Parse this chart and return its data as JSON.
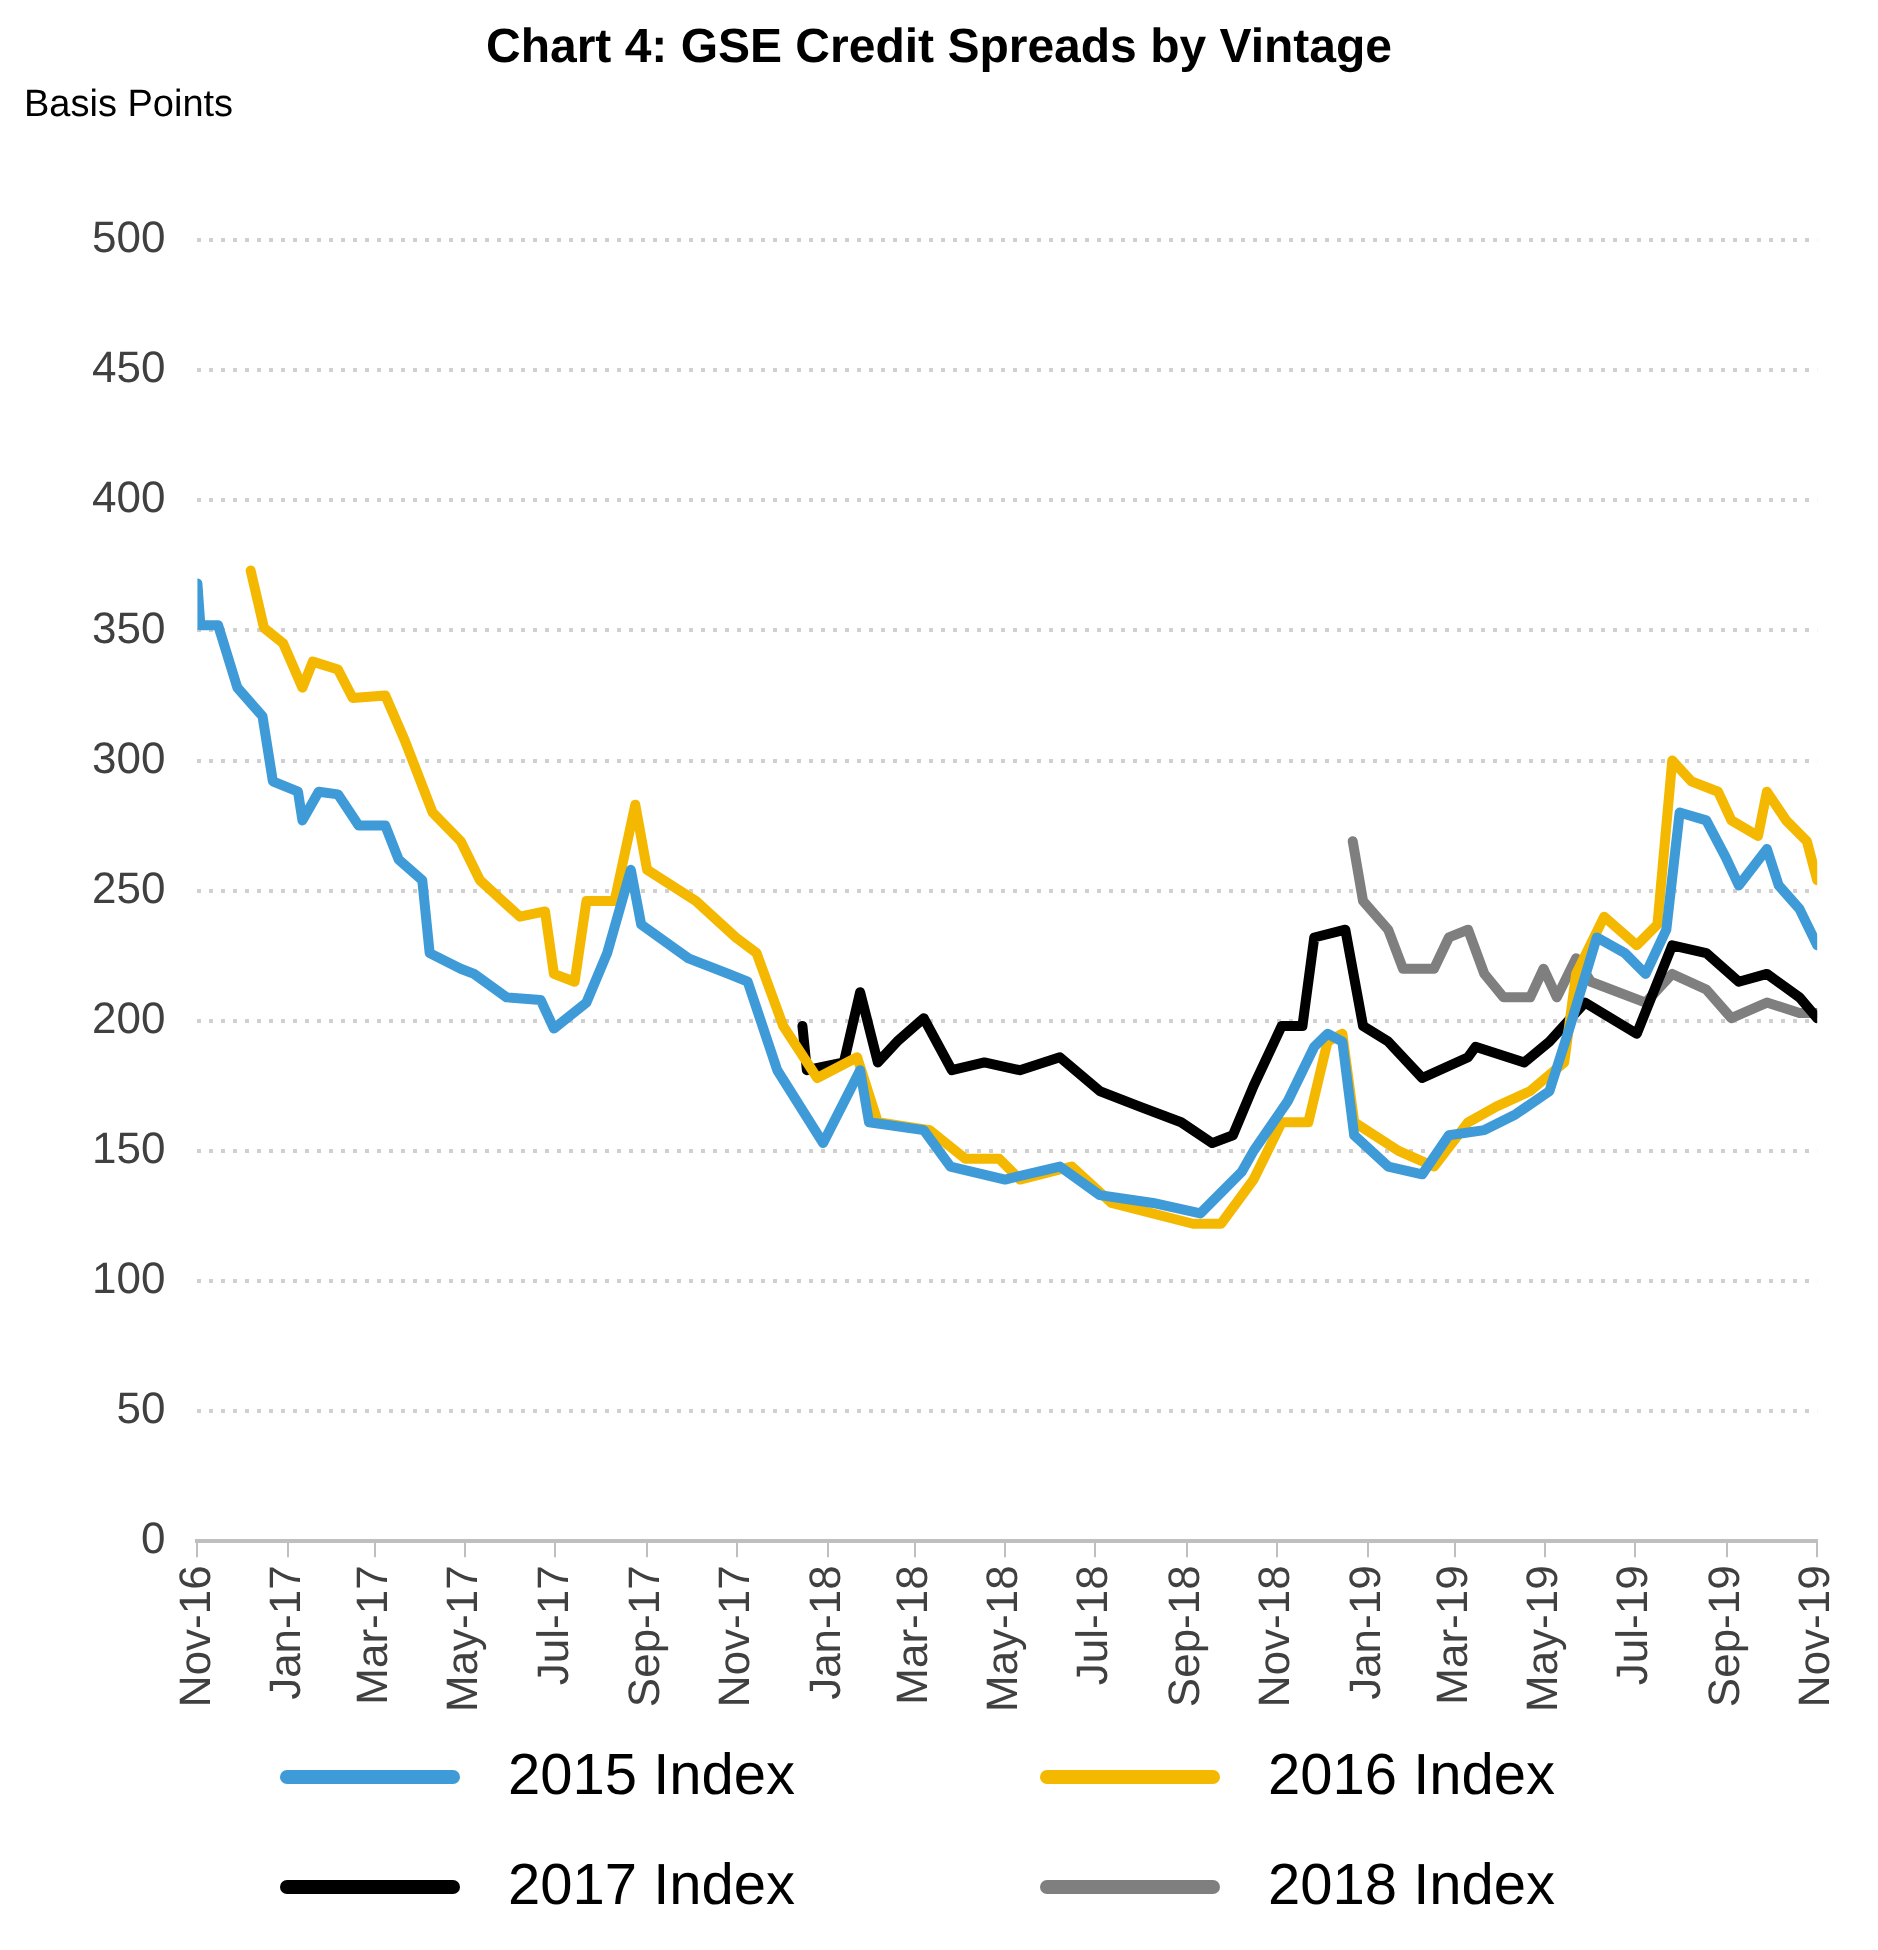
{
  "chart_data": {
    "type": "line",
    "title": "Chart 4: GSE Credit Spreads by Vintage",
    "ylabel": "Basis Points",
    "xlim": [
      "2016-11-01",
      "2019-11-01"
    ],
    "xticks": [
      {
        "value": "2016-11-01",
        "label": "Nov-16"
      },
      {
        "value": "2017-01-01",
        "label": "Jan-17"
      },
      {
        "value": "2017-03-01",
        "label": "Mar-17"
      },
      {
        "value": "2017-05-01",
        "label": "May-17"
      },
      {
        "value": "2017-07-01",
        "label": "Jul-17"
      },
      {
        "value": "2017-09-01",
        "label": "Sep-17"
      },
      {
        "value": "2017-11-01",
        "label": "Nov-17"
      },
      {
        "value": "2018-01-01",
        "label": "Jan-18"
      },
      {
        "value": "2018-03-01",
        "label": "Mar-18"
      },
      {
        "value": "2018-05-01",
        "label": "May-18"
      },
      {
        "value": "2018-07-01",
        "label": "Jul-18"
      },
      {
        "value": "2018-09-01",
        "label": "Sep-18"
      },
      {
        "value": "2018-11-01",
        "label": "Nov-18"
      },
      {
        "value": "2019-01-01",
        "label": "Jan-19"
      },
      {
        "value": "2019-03-01",
        "label": "Mar-19"
      },
      {
        "value": "2019-05-01",
        "label": "May-19"
      },
      {
        "value": "2019-07-01",
        "label": "Jul-19"
      },
      {
        "value": "2019-09-01",
        "label": "Sep-19"
      },
      {
        "value": "2019-11-01",
        "label": "Nov-19"
      }
    ],
    "ylim": [
      0,
      500
    ],
    "yticks": [
      0,
      50,
      100,
      150,
      200,
      250,
      300,
      350,
      400,
      450,
      500
    ],
    "grid": "y",
    "legend": "bottom",
    "marker": "none",
    "line_style": "solid",
    "series": [
      {
        "name": "2015 Index",
        "color": "#3f9bd7",
        "x": [
          "2016-11-01",
          "2016-11-03",
          "2016-11-15",
          "2016-11-28",
          "2016-12-15",
          "2016-12-22",
          "2017-01-08",
          "2017-01-11",
          "2017-01-22",
          "2017-02-04",
          "2017-02-18",
          "2017-03-08",
          "2017-03-17",
          "2017-04-02",
          "2017-04-07",
          "2017-04-28",
          "2017-05-07",
          "2017-05-29",
          "2017-06-21",
          "2017-06-30",
          "2017-07-22",
          "2017-08-05",
          "2017-08-21",
          "2017-08-28",
          "2017-09-29",
          "2017-10-26",
          "2017-11-08",
          "2017-11-28",
          "2017-12-29",
          "2018-01-23",
          "2018-01-29",
          "2018-03-07",
          "2018-03-25",
          "2018-05-01",
          "2018-06-07",
          "2018-07-04",
          "2018-08-09",
          "2018-09-10",
          "2018-10-08",
          "2018-10-16",
          "2018-11-08",
          "2018-11-26",
          "2018-12-05",
          "2018-12-15",
          "2018-12-23",
          "2019-01-15",
          "2019-02-07",
          "2019-02-25",
          "2019-03-21",
          "2019-04-11",
          "2019-05-04",
          "2019-05-18",
          "2019-06-05",
          "2019-06-24",
          "2019-07-08",
          "2019-07-22",
          "2019-07-31",
          "2019-08-18",
          "2019-08-31",
          "2019-09-09",
          "2019-09-28",
          "2019-10-06",
          "2019-10-20",
          "2019-11-01"
        ],
        "values": [
          368,
          352,
          352,
          328,
          317,
          292,
          288,
          277,
          288,
          287,
          275,
          275,
          262,
          254,
          226,
          220,
          218,
          209,
          208,
          197,
          207,
          226,
          258,
          237,
          224,
          218,
          215,
          181,
          153,
          181,
          161,
          158,
          144,
          139,
          144,
          133,
          130,
          126,
          142,
          150,
          169,
          190,
          195,
          192,
          156,
          144,
          141,
          156,
          158,
          164,
          173,
          198,
          232,
          226,
          218,
          235,
          280,
          277,
          263,
          252,
          266,
          252,
          243,
          229
        ]
      },
      {
        "name": "2016 Index",
        "color": "#f5b800",
        "x": [
          "2016-12-07",
          "2016-12-16",
          "2016-12-29",
          "2017-01-11",
          "2017-01-18",
          "2017-02-04",
          "2017-02-14",
          "2017-03-08",
          "2017-03-21",
          "2017-04-09",
          "2017-04-28",
          "2017-05-11",
          "2017-06-07",
          "2017-06-24",
          "2017-06-30",
          "2017-07-14",
          "2017-07-22",
          "2017-08-10",
          "2017-08-24",
          "2017-09-01",
          "2017-10-04",
          "2017-10-31",
          "2017-11-14",
          "2017-12-02",
          "2017-12-25",
          "2018-01-21",
          "2018-02-04",
          "2018-03-11",
          "2018-04-04",
          "2018-04-27",
          "2018-05-11",
          "2018-06-15",
          "2018-07-12",
          "2018-09-05",
          "2018-09-24",
          "2018-10-16",
          "2018-11-04",
          "2018-11-22",
          "2018-12-05",
          "2018-12-15",
          "2018-12-23",
          "2019-01-22",
          "2019-02-15",
          "2019-03-10",
          "2019-03-29",
          "2019-04-21",
          "2019-05-14",
          "2019-05-22",
          "2019-06-10",
          "2019-07-02",
          "2019-07-16",
          "2019-07-26",
          "2019-08-08",
          "2019-08-26",
          "2019-09-04",
          "2019-09-22",
          "2019-09-28",
          "2019-10-11",
          "2019-10-25",
          "2019-11-01"
        ],
        "values": [
          373,
          351,
          345,
          328,
          338,
          335,
          324,
          325,
          308,
          280,
          269,
          254,
          240,
          242,
          218,
          215,
          246,
          246,
          283,
          258,
          246,
          232,
          226,
          198,
          178,
          186,
          161,
          158,
          147,
          147,
          139,
          144,
          130,
          122,
          122,
          139,
          161,
          161,
          192,
          195,
          161,
          150,
          144,
          161,
          167,
          173,
          184,
          218,
          240,
          229,
          237,
          300,
          292,
          288,
          277,
          271,
          288,
          277,
          269,
          254
        ]
      },
      {
        "name": "2017 Index",
        "color": "#000000",
        "x": [
          "2017-12-15",
          "2017-12-18",
          "2018-01-12",
          "2018-01-23",
          "2018-02-04",
          "2018-02-17",
          "2018-03-07",
          "2018-03-26",
          "2018-04-17",
          "2018-05-11",
          "2018-06-07",
          "2018-07-04",
          "2018-07-31",
          "2018-08-28",
          "2018-09-18",
          "2018-10-02",
          "2018-10-16",
          "2018-11-04",
          "2018-11-18",
          "2018-11-26",
          "2018-12-17",
          "2018-12-29",
          "2019-01-15",
          "2019-02-07",
          "2019-03-10",
          "2019-03-15",
          "2019-04-17",
          "2019-05-04",
          "2019-05-28",
          "2019-07-02",
          "2019-07-26",
          "2019-08-18",
          "2019-09-09",
          "2019-09-28",
          "2019-10-20",
          "2019-11-01"
        ],
        "values": [
          198,
          181,
          184,
          211,
          184,
          192,
          201,
          181,
          184,
          181,
          186,
          173,
          167,
          161,
          153,
          156,
          175,
          198,
          198,
          232,
          235,
          198,
          192,
          178,
          186,
          190,
          184,
          192,
          207,
          195,
          229,
          226,
          215,
          218,
          209,
          201
        ]
      },
      {
        "name": "2018 Index",
        "color": "#7f7f7f",
        "x": [
          "2018-12-22",
          "2018-12-29",
          "2019-01-15",
          "2019-01-25",
          "2019-02-15",
          "2019-02-25",
          "2019-03-10",
          "2019-03-21",
          "2019-04-03",
          "2019-04-21",
          "2019-04-30",
          "2019-05-09",
          "2019-05-22",
          "2019-06-01",
          "2019-07-08",
          "2019-07-26",
          "2019-08-18",
          "2019-09-04",
          "2019-09-28",
          "2019-10-20",
          "2019-11-01"
        ],
        "values": [
          269,
          246,
          235,
          220,
          220,
          232,
          235,
          218,
          209,
          209,
          220,
          209,
          224,
          215,
          207,
          218,
          212,
          201,
          207,
          203,
          203
        ]
      }
    ]
  }
}
